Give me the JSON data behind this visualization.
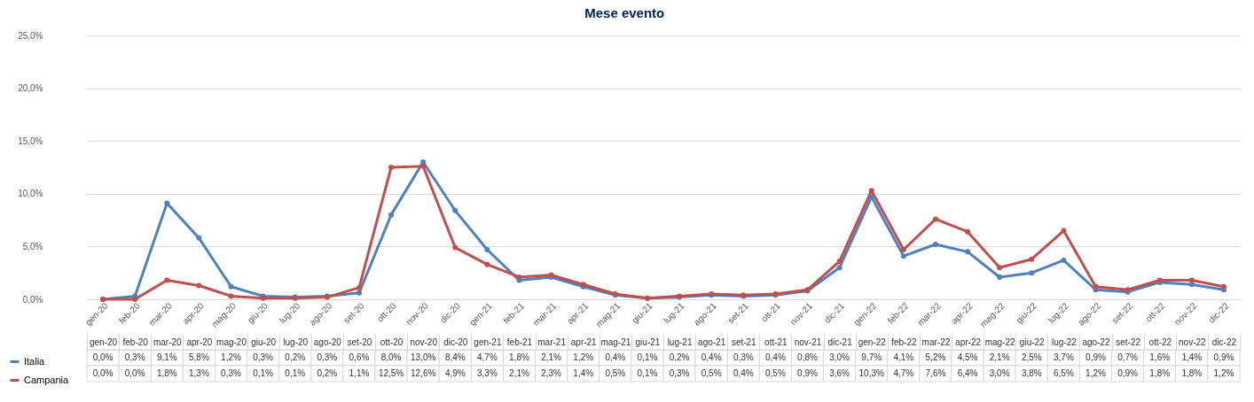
{
  "chart_data": {
    "type": "line",
    "title": "Mese evento",
    "categories": [
      "gen-20",
      "feb-20",
      "mar-20",
      "apr-20",
      "mag-20",
      "giu-20",
      "lug-20",
      "ago-20",
      "set-20",
      "ott-20",
      "nov-20",
      "dic-20",
      "gen-21",
      "feb-21",
      "mar-21",
      "apr-21",
      "mag-21",
      "giu-21",
      "lug-21",
      "ago-21",
      "set-21",
      "ott-21",
      "nov-21",
      "dic-21",
      "gen-22",
      "feb-22",
      "mar-22",
      "apr-22",
      "mag-22",
      "giu-22",
      "lug-22",
      "ago-22",
      "set-22",
      "ott-22",
      "nov-22",
      "dic-22"
    ],
    "series": [
      {
        "name": "Italia",
        "color": "#4f81bd",
        "values": [
          0.0,
          0.3,
          9.1,
          5.8,
          1.2,
          0.3,
          0.2,
          0.3,
          0.6,
          8.0,
          13.0,
          8.4,
          4.7,
          1.8,
          2.1,
          1.2,
          0.4,
          0.1,
          0.2,
          0.4,
          0.3,
          0.4,
          0.8,
          3.0,
          9.7,
          4.1,
          5.2,
          4.5,
          2.1,
          2.5,
          3.7,
          0.9,
          0.7,
          1.6,
          1.4,
          0.9
        ],
        "value_labels": [
          "0,0%",
          "0,3%",
          "9,1%",
          "5,8%",
          "1,2%",
          "0,3%",
          "0,2%",
          "0,3%",
          "0,6%",
          "8,0%",
          "13,0%",
          "8,4%",
          "4,7%",
          "1,8%",
          "2,1%",
          "1,2%",
          "0,4%",
          "0,1%",
          "0,2%",
          "0,4%",
          "0,3%",
          "0,4%",
          "0,8%",
          "3,0%",
          "9,7%",
          "4,1%",
          "5,2%",
          "4,5%",
          "2,1%",
          "2,5%",
          "3,7%",
          "0,9%",
          "0,7%",
          "1,6%",
          "1,4%",
          "0,9%"
        ]
      },
      {
        "name": "Campania",
        "color": "#c0504d",
        "values": [
          0.0,
          0.0,
          1.8,
          1.3,
          0.3,
          0.1,
          0.1,
          0.2,
          1.1,
          12.5,
          12.6,
          4.9,
          3.3,
          2.1,
          2.3,
          1.4,
          0.5,
          0.1,
          0.3,
          0.5,
          0.4,
          0.5,
          0.9,
          3.6,
          10.3,
          4.7,
          7.6,
          6.4,
          3.0,
          3.8,
          6.5,
          1.2,
          0.9,
          1.8,
          1.8,
          1.2
        ],
        "value_labels": [
          "0,0%",
          "0,0%",
          "1,8%",
          "1,3%",
          "0,3%",
          "0,1%",
          "0,1%",
          "0,2%",
          "1,1%",
          "12,5%",
          "12,6%",
          "4,9%",
          "3,3%",
          "2,1%",
          "2,3%",
          "1,4%",
          "0,5%",
          "0,1%",
          "0,3%",
          "0,5%",
          "0,4%",
          "0,5%",
          "0,9%",
          "3,6%",
          "10,3%",
          "4,7%",
          "7,6%",
          "6,4%",
          "3,0%",
          "3,8%",
          "6,5%",
          "1,2%",
          "0,9%",
          "1,8%",
          "1,8%",
          "1,2%"
        ]
      }
    ],
    "ylim": [
      0,
      25
    ],
    "yticks": [
      {
        "value": 0,
        "label": "0,0%"
      },
      {
        "value": 5,
        "label": "5,0%"
      },
      {
        "value": 10,
        "label": "10,0%"
      },
      {
        "value": 15,
        "label": "15,0%"
      },
      {
        "value": 20,
        "label": "20,0%"
      },
      {
        "value": 25,
        "label": "25,0%"
      }
    ],
    "grid": "y",
    "marker": "circle",
    "legend": "bottom left"
  }
}
